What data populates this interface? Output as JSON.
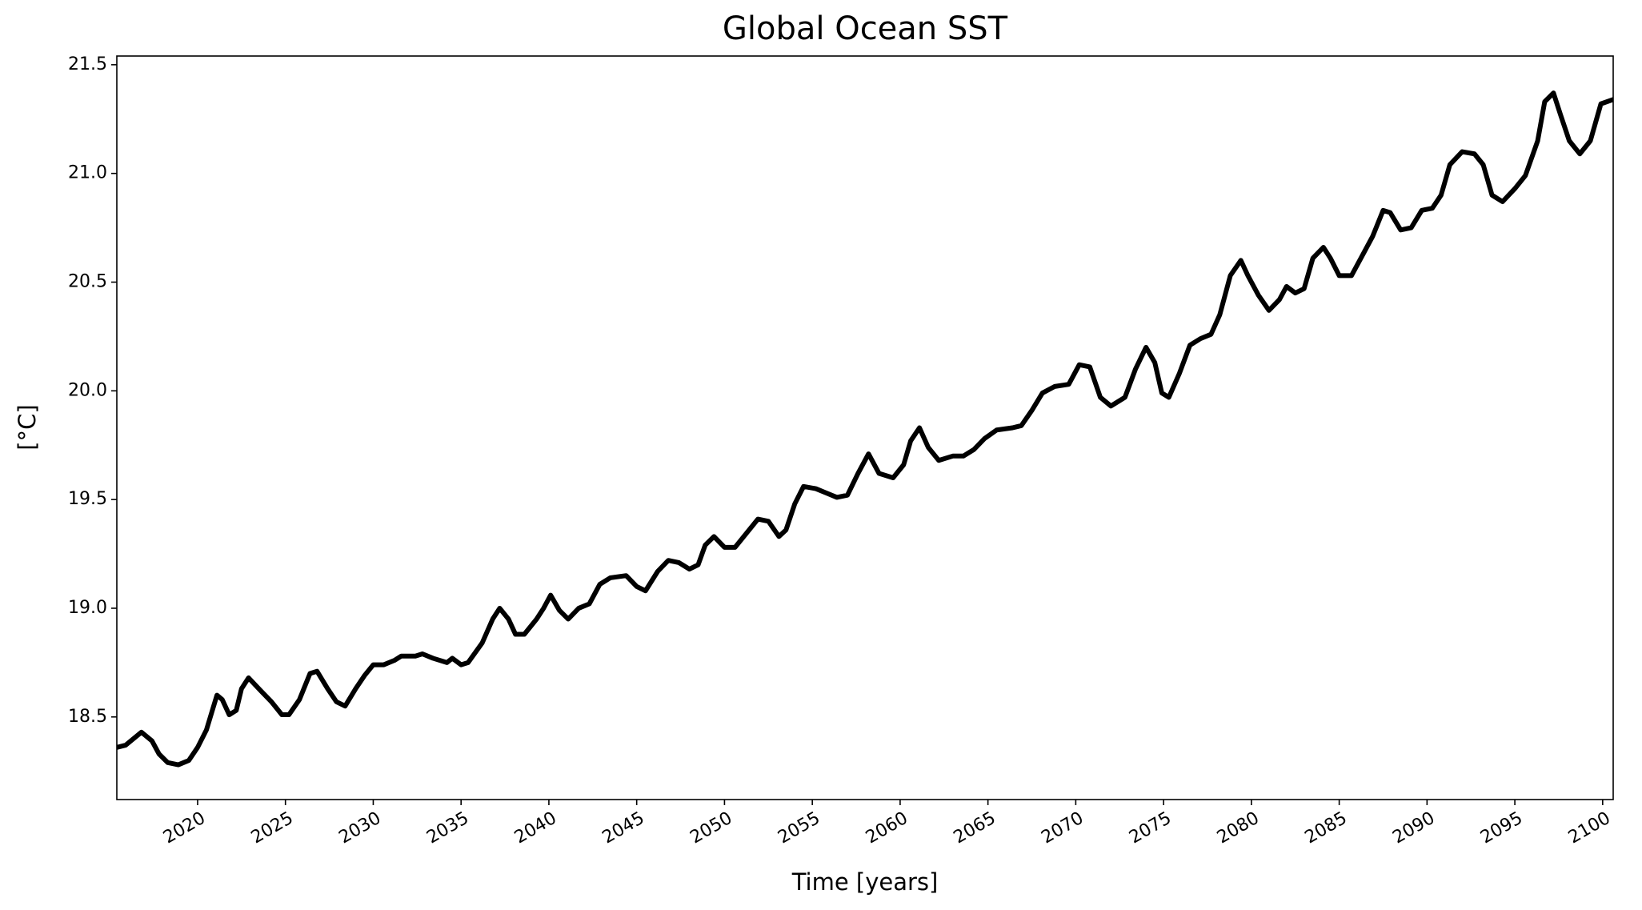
{
  "chart_data": {
    "type": "line",
    "title": "Global Ocean SST",
    "xlabel": "Time [years]",
    "ylabel": "[°C]",
    "x": [
      2015.4,
      2015.9,
      2016.8,
      2017.4,
      2017.8,
      2018.3,
      2018.9,
      2019.5,
      2020.0,
      2020.5,
      2021.1,
      2021.4,
      2021.8,
      2022.2,
      2022.5,
      2022.9,
      2023.6,
      2024.2,
      2024.8,
      2025.2,
      2025.8,
      2026.4,
      2026.8,
      2027.4,
      2027.9,
      2028.4,
      2029.0,
      2029.5,
      2030.0,
      2030.6,
      2031.2,
      2031.6,
      2032.4,
      2032.8,
      2033.4,
      2034.2,
      2034.5,
      2035.0,
      2035.4,
      2036.2,
      2036.8,
      2037.2,
      2037.7,
      2038.1,
      2038.6,
      2039.3,
      2039.7,
      2040.1,
      2040.6,
      2041.1,
      2041.7,
      2042.3,
      2042.9,
      2043.5,
      2044.4,
      2045.0,
      2045.5,
      2046.2,
      2046.8,
      2047.4,
      2048.0,
      2048.5,
      2048.9,
      2049.4,
      2050.0,
      2050.6,
      2051.3,
      2051.9,
      2052.5,
      2053.1,
      2053.5,
      2054.0,
      2054.5,
      2055.2,
      2055.8,
      2056.4,
      2057.0,
      2057.6,
      2058.2,
      2058.8,
      2059.6,
      2060.2,
      2060.6,
      2061.1,
      2061.6,
      2062.2,
      2063.0,
      2063.6,
      2064.2,
      2064.8,
      2065.5,
      2066.4,
      2066.9,
      2067.5,
      2068.1,
      2068.8,
      2069.6,
      2070.2,
      2070.8,
      2071.4,
      2072.0,
      2072.8,
      2073.4,
      2074.0,
      2074.5,
      2074.9,
      2075.3,
      2075.9,
      2076.5,
      2077.1,
      2077.7,
      2078.2,
      2078.8,
      2079.4,
      2079.8,
      2080.4,
      2081.0,
      2081.6,
      2082.0,
      2082.5,
      2083.0,
      2083.5,
      2084.1,
      2084.5,
      2085.0,
      2085.7,
      2086.3,
      2086.9,
      2087.5,
      2087.9,
      2088.5,
      2089.1,
      2089.7,
      2090.3,
      2090.8,
      2091.3,
      2092.0,
      2092.7,
      2093.2,
      2093.7,
      2094.3,
      2095.0,
      2095.6,
      2096.3,
      2096.7,
      2097.2,
      2097.6,
      2098.1,
      2098.7,
      2099.3,
      2099.9,
      2100.6
    ],
    "series": [
      {
        "name": "SST",
        "color": "#000000",
        "values": [
          18.36,
          18.37,
          18.43,
          18.39,
          18.33,
          18.29,
          18.28,
          18.3,
          18.36,
          18.44,
          18.6,
          18.58,
          18.51,
          18.53,
          18.63,
          18.68,
          18.62,
          18.57,
          18.51,
          18.51,
          18.58,
          18.7,
          18.71,
          18.63,
          18.57,
          18.55,
          18.63,
          18.69,
          18.74,
          18.74,
          18.76,
          18.78,
          18.78,
          18.79,
          18.77,
          18.75,
          18.77,
          18.74,
          18.75,
          18.84,
          18.95,
          19.0,
          18.95,
          18.88,
          18.88,
          18.95,
          19.0,
          19.06,
          18.99,
          18.95,
          19.0,
          19.02,
          19.11,
          19.14,
          19.15,
          19.1,
          19.08,
          19.17,
          19.22,
          19.21,
          19.18,
          19.2,
          19.29,
          19.33,
          19.28,
          19.28,
          19.35,
          19.41,
          19.4,
          19.33,
          19.36,
          19.48,
          19.56,
          19.55,
          19.53,
          19.51,
          19.52,
          19.62,
          19.71,
          19.62,
          19.6,
          19.66,
          19.77,
          19.83,
          19.74,
          19.68,
          19.7,
          19.7,
          19.73,
          19.78,
          19.82,
          19.83,
          19.84,
          19.91,
          19.99,
          20.02,
          20.03,
          20.12,
          20.11,
          19.97,
          19.93,
          19.97,
          20.1,
          20.2,
          20.13,
          19.99,
          19.97,
          20.08,
          20.21,
          20.24,
          20.26,
          20.35,
          20.53,
          20.6,
          20.53,
          20.44,
          20.37,
          20.42,
          20.48,
          20.45,
          20.47,
          20.61,
          20.66,
          20.61,
          20.53,
          20.53,
          20.62,
          20.71,
          20.83,
          20.82,
          20.74,
          20.75,
          20.83,
          20.84,
          20.9,
          21.04,
          21.1,
          21.09,
          21.04,
          20.9,
          20.87,
          20.93,
          20.99,
          21.15,
          21.33,
          21.37,
          21.27,
          21.15,
          21.09,
          21.15,
          21.32,
          21.34
        ]
      }
    ],
    "xlim": [
      2015.4,
      2100.6
    ],
    "ylim": [
      18.12,
      21.54
    ],
    "xticks": [
      2020,
      2025,
      2030,
      2035,
      2040,
      2045,
      2050,
      2055,
      2060,
      2065,
      2070,
      2075,
      2080,
      2085,
      2090,
      2095,
      2100
    ],
    "yticks": [
      18.5,
      {
        "value": 19,
        "label": "19.0"
      },
      19.5,
      {
        "value": 20,
        "label": "20.0"
      },
      20.5,
      {
        "value": 21,
        "label": "21.0"
      },
      21.5
    ],
    "grid": false
  }
}
